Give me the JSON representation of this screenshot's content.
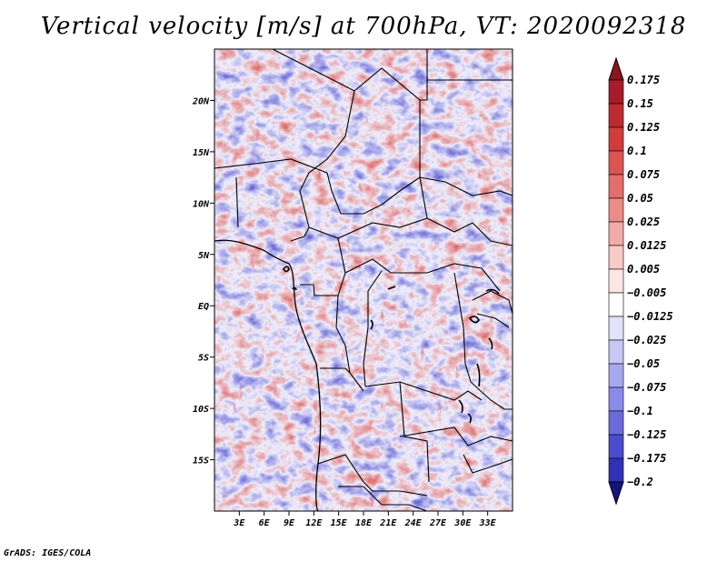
{
  "title": "Vertical velocity [m/s] at 700hPa, VT: 2020092318",
  "footer": "GrADS: IGES/COLA",
  "map": {
    "variable": "Vertical velocity",
    "units": "m/s",
    "level": "700hPa",
    "valid_time": "2020092318",
    "lon_range": [
      0,
      36
    ],
    "lat_range": [
      -20,
      25
    ],
    "lat_ticks": [
      {
        "value": 20,
        "label": "20N"
      },
      {
        "value": 15,
        "label": "15N"
      },
      {
        "value": 10,
        "label": "10N"
      },
      {
        "value": 5,
        "label": "5N"
      },
      {
        "value": 0,
        "label": "EQ"
      },
      {
        "value": -5,
        "label": "5S"
      },
      {
        "value": -10,
        "label": "10S"
      },
      {
        "value": -15,
        "label": "15S"
      }
    ],
    "lon_ticks": [
      {
        "value": 3,
        "label": "3E"
      },
      {
        "value": 6,
        "label": "6E"
      },
      {
        "value": 9,
        "label": "9E"
      },
      {
        "value": 12,
        "label": "12E"
      },
      {
        "value": 15,
        "label": "15E"
      },
      {
        "value": 18,
        "label": "18E"
      },
      {
        "value": 21,
        "label": "21E"
      },
      {
        "value": 24,
        "label": "24E"
      },
      {
        "value": 27,
        "label": "27E"
      },
      {
        "value": 30,
        "label": "30E"
      },
      {
        "value": 33,
        "label": "33E"
      }
    ]
  },
  "colorbar": {
    "levels": [
      {
        "label": "0.175",
        "color": "#a61c28"
      },
      {
        "label": "0.15",
        "color": "#be2a31"
      },
      {
        "label": "0.125",
        "color": "#d23c3c"
      },
      {
        "label": "0.1",
        "color": "#dd5551"
      },
      {
        "label": "0.075",
        "color": "#e46e6a"
      },
      {
        "label": "0.05",
        "color": "#ec8c87"
      },
      {
        "label": "0.025",
        "color": "#f2aba6"
      },
      {
        "label": "0.0125",
        "color": "#f7cbc7"
      },
      {
        "label": "0.005",
        "color": "#fbe6e3"
      },
      {
        "label": "-0.005",
        "color": "#ffffff"
      },
      {
        "label": "-0.0125",
        "color": "#e2e2fb"
      },
      {
        "label": "-0.025",
        "color": "#c8c8f6"
      },
      {
        "label": "-0.05",
        "color": "#a8a8f0"
      },
      {
        "label": "-0.075",
        "color": "#8a8ae8"
      },
      {
        "label": "-0.1",
        "color": "#6b6bdc"
      },
      {
        "label": "-0.125",
        "color": "#4c4cce"
      },
      {
        "label": "-0.175",
        "color": "#3131b6"
      },
      {
        "label": "-0.2",
        "color": "#1e1e98"
      }
    ],
    "top_color": "#8c1420",
    "bottom_color": "#141480"
  }
}
